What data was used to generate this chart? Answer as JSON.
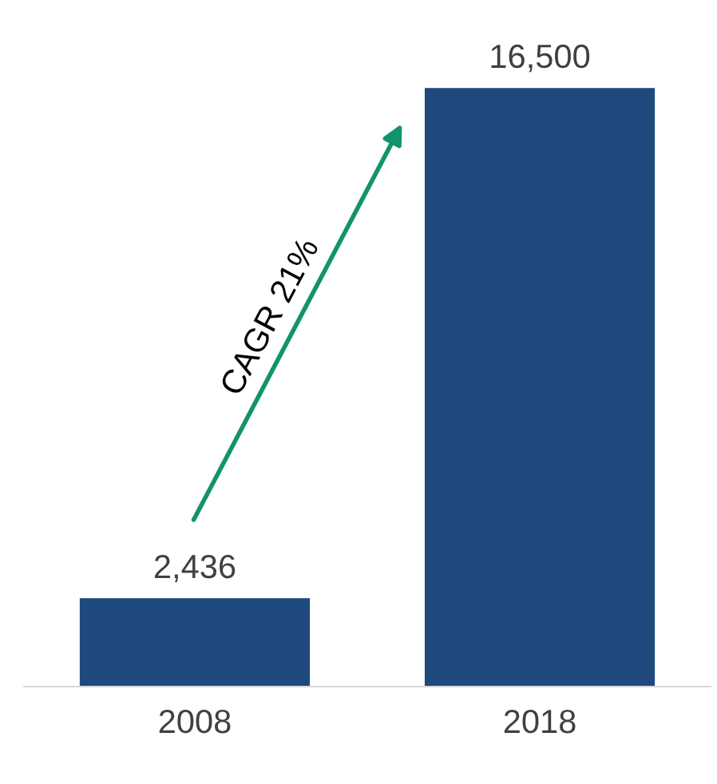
{
  "chart_data": {
    "type": "bar",
    "categories": [
      "2008",
      "2018"
    ],
    "values": [
      2436,
      16500
    ],
    "color": "#1f497d",
    "data_labels": true,
    "grid": false,
    "legend": false,
    "value_labels": [
      "2,436",
      "16,500"
    ],
    "annotations": [
      "CAGR 21%"
    ]
  }
}
